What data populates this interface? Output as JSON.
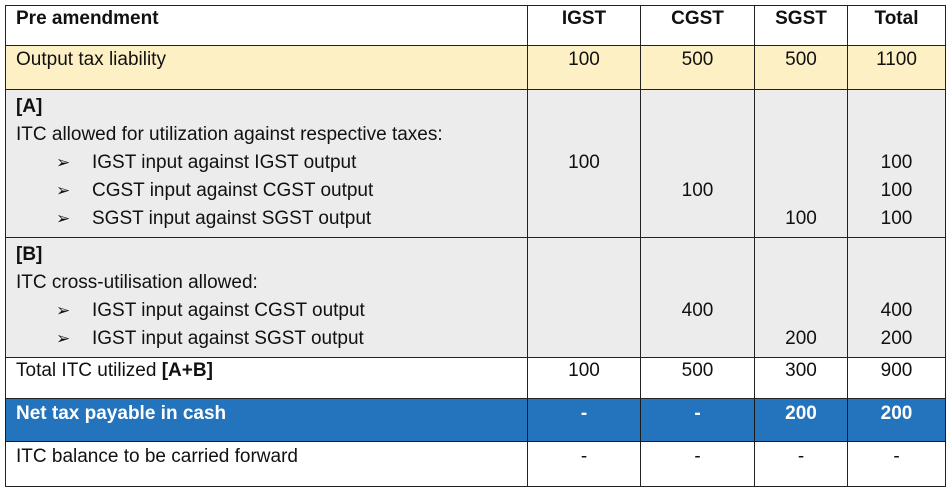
{
  "header": {
    "label": "Pre amendment",
    "igst": "IGST",
    "cgst": "CGST",
    "sgst": "SGST",
    "total": "Total"
  },
  "output": {
    "label": "Output tax liability",
    "igst": "100",
    "cgst": "500",
    "sgst": "500",
    "total": "1100"
  },
  "section_a": {
    "tag": "[A]",
    "title": "ITC allowed for utilization against respective taxes:",
    "items": [
      {
        "label": "IGST input against IGST output",
        "igst": "100",
        "cgst": "",
        "sgst": "",
        "total": "100"
      },
      {
        "label": "CGST input against CGST output",
        "igst": "",
        "cgst": "100",
        "sgst": "",
        "total": "100"
      },
      {
        "label": "SGST input against SGST output",
        "igst": "",
        "cgst": "",
        "sgst": "100",
        "total": "100"
      }
    ]
  },
  "section_b": {
    "tag": "[B]",
    "title": "ITC cross-utilisation allowed:",
    "items": [
      {
        "label": "IGST input against CGST output",
        "igst": "",
        "cgst": "400",
        "sgst": "",
        "total": "400"
      },
      {
        "label": "IGST input against SGST output",
        "igst": "",
        "cgst": "",
        "sgst": "200",
        "total": "200"
      }
    ]
  },
  "total_itc": {
    "label": "Total ITC utilized",
    "label_bold": "[A+B]",
    "igst": "100",
    "cgst": "500",
    "sgst": "300",
    "total": "900"
  },
  "net_tax": {
    "label": "Net tax payable in cash",
    "igst": "-",
    "cgst": "-",
    "sgst": "200",
    "total": "200"
  },
  "carry_forward": {
    "label": "ITC balance to be carried forward",
    "igst": "-",
    "cgst": "-",
    "sgst": "-",
    "total": "-"
  },
  "bullet_glyph": "➢",
  "colors": {
    "output_row_bg": "#fdf0c4",
    "section_bg": "#ececec",
    "net_row_bg": "#2473bd",
    "net_row_text": "#ffffff"
  }
}
